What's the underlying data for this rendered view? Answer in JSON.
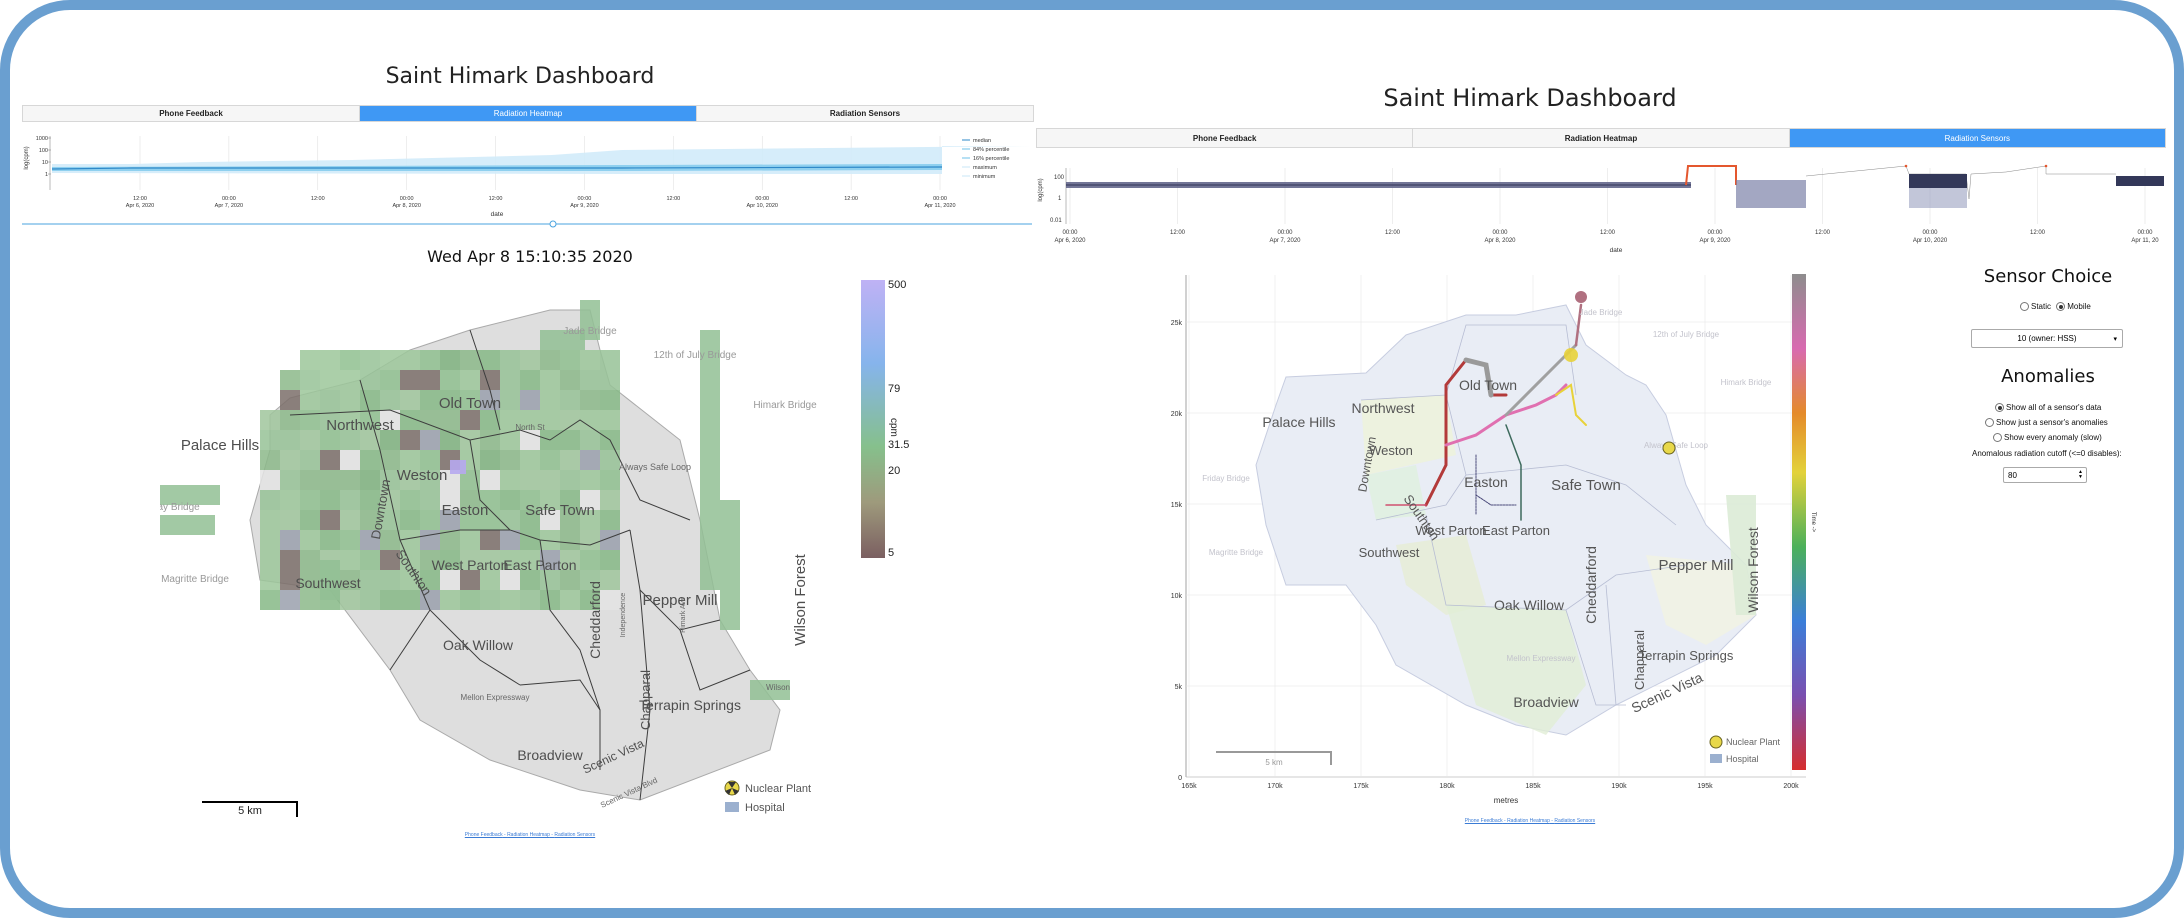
{
  "left": {
    "title": "Saint Himark Dashboard",
    "tabs": [
      {
        "label": "Phone Feedback"
      },
      {
        "label": "Radiation Heatmap"
      },
      {
        "label": "Radiation Sensors"
      }
    ],
    "active_tab": 1,
    "chart": {
      "ylabel": "log(cpm)",
      "xlabel": "date",
      "yticks": [
        "1000",
        "100",
        "10",
        "1"
      ],
      "xticks": [
        {
          "t": "12:00",
          "d": "Apr 6, 2020"
        },
        {
          "t": "00:00",
          "d": "Apr 7, 2020"
        },
        {
          "t": "12:00",
          "d": ""
        },
        {
          "t": "00:00",
          "d": "Apr 8, 2020"
        },
        {
          "t": "12:00",
          "d": ""
        },
        {
          "t": "00:00",
          "d": "Apr 9, 2020"
        },
        {
          "t": "12:00",
          "d": ""
        },
        {
          "t": "00:00",
          "d": "Apr 10, 2020"
        },
        {
          "t": "12:00",
          "d": ""
        },
        {
          "t": "00:00",
          "d": "Apr 11, 2020"
        }
      ],
      "legend": [
        "median",
        "84% percentile",
        "16% percentile",
        "maximum",
        "minimum"
      ]
    },
    "timestamp": "Wed Apr 8 15:10:35 2020",
    "colorbar": {
      "ticks": [
        "500",
        "79",
        "31.5",
        "20",
        "5"
      ],
      "label": "cpm"
    },
    "map_labels": {
      "districts": [
        "Palace Hills",
        "Northwest",
        "Old Town",
        "Weston",
        "Downtown",
        "Easton",
        "Safe Town",
        "Southton",
        "West Parton",
        "East Parton",
        "Southwest",
        "Oak Willow",
        "Cheddarford",
        "Chapparal",
        "Pepper Mill",
        "Wilson Forest",
        "Terrapin Springs",
        "Broadview",
        "Scenic Vista",
        "North St",
        "Always Safe Loop",
        "Mellon Expressway",
        "Independence",
        "Himark Ave",
        "Scenic Vista Blvd",
        "Wilson"
      ],
      "bridges": [
        "Jade Bridge",
        "12th of July Bridge",
        "Himark Bridge",
        "Friday Bridge",
        "Magritte Bridge"
      ]
    },
    "legend": {
      "plant": "Nuclear Plant",
      "hospital": "Hospital"
    },
    "scale": "5 km",
    "footer": [
      "Phone Feedback",
      "Radiation Heatmap",
      "Radiation Sensors"
    ]
  },
  "right": {
    "title": "Saint Himark Dashboard",
    "tabs": [
      {
        "label": "Phone Feedback"
      },
      {
        "label": "Radiation Heatmap"
      },
      {
        "label": "Radiation Sensors"
      }
    ],
    "active_tab": 2,
    "chart": {
      "ylabel": "log(cpm)",
      "xlabel": "date",
      "yticks": [
        "100",
        "1",
        "0.01"
      ],
      "xticks": [
        {
          "t": "00:00",
          "d": "Apr 6, 2020"
        },
        {
          "t": "12:00",
          "d": ""
        },
        {
          "t": "00:00",
          "d": "Apr 7, 2020"
        },
        {
          "t": "12:00",
          "d": ""
        },
        {
          "t": "00:00",
          "d": "Apr 8, 2020"
        },
        {
          "t": "12:00",
          "d": ""
        },
        {
          "t": "00:00",
          "d": "Apr 9, 2020"
        },
        {
          "t": "12:00",
          "d": ""
        },
        {
          "t": "00:00",
          "d": "Apr 10, 2020"
        },
        {
          "t": "12:00",
          "d": ""
        },
        {
          "t": "00:00",
          "d": "Apr 11, 20"
        }
      ]
    },
    "map": {
      "yticks": [
        "25k",
        "20k",
        "15k",
        "10k",
        "5k",
        "0"
      ],
      "xticks": [
        "165k",
        "170k",
        "175k",
        "180k",
        "185k",
        "190k",
        "195k",
        "200k"
      ],
      "xlabel": "metres",
      "colorbar_label": "Time ->",
      "districts": [
        "Palace Hills",
        "Northwest",
        "Old Town",
        "Weston",
        "Downtown",
        "Easton",
        "Safe Town",
        "Southton",
        "West Parton",
        "East Parton",
        "Southwest",
        "Oak Willow",
        "Cheddarford",
        "Chapparal",
        "Pepper Mill",
        "Wilson Forest",
        "Terrapin Springs",
        "Broadview",
        "Scenic Vista"
      ],
      "bridges": [
        "Jade Bridge",
        "12th of July Bridge",
        "Himark Bridge",
        "Friday Bridge",
        "Magritte Bridge",
        "Always Safe Loop",
        "Mellon Expressway"
      ],
      "legend": {
        "plant": "Nuclear Plant",
        "hospital": "Hospital"
      },
      "scale": "5 km"
    },
    "sensor_choice": {
      "title": "Sensor Choice",
      "options": [
        "Static",
        "Mobile"
      ],
      "selected": "Mobile",
      "dropdown": "10 (owner: HSS)"
    },
    "anomalies": {
      "title": "Anomalies",
      "options": [
        "Show all of a sensor's data",
        "Show just a sensor's anomalies",
        "Show every anomaly (slow)"
      ],
      "selected": 0,
      "cutoff_label": "Anomalous radiation cutoff (<=0 disables):",
      "cutoff_value": "80"
    },
    "footer": [
      "Phone Feedback",
      "Radiation Heatmap",
      "Radiation Sensors"
    ]
  }
}
